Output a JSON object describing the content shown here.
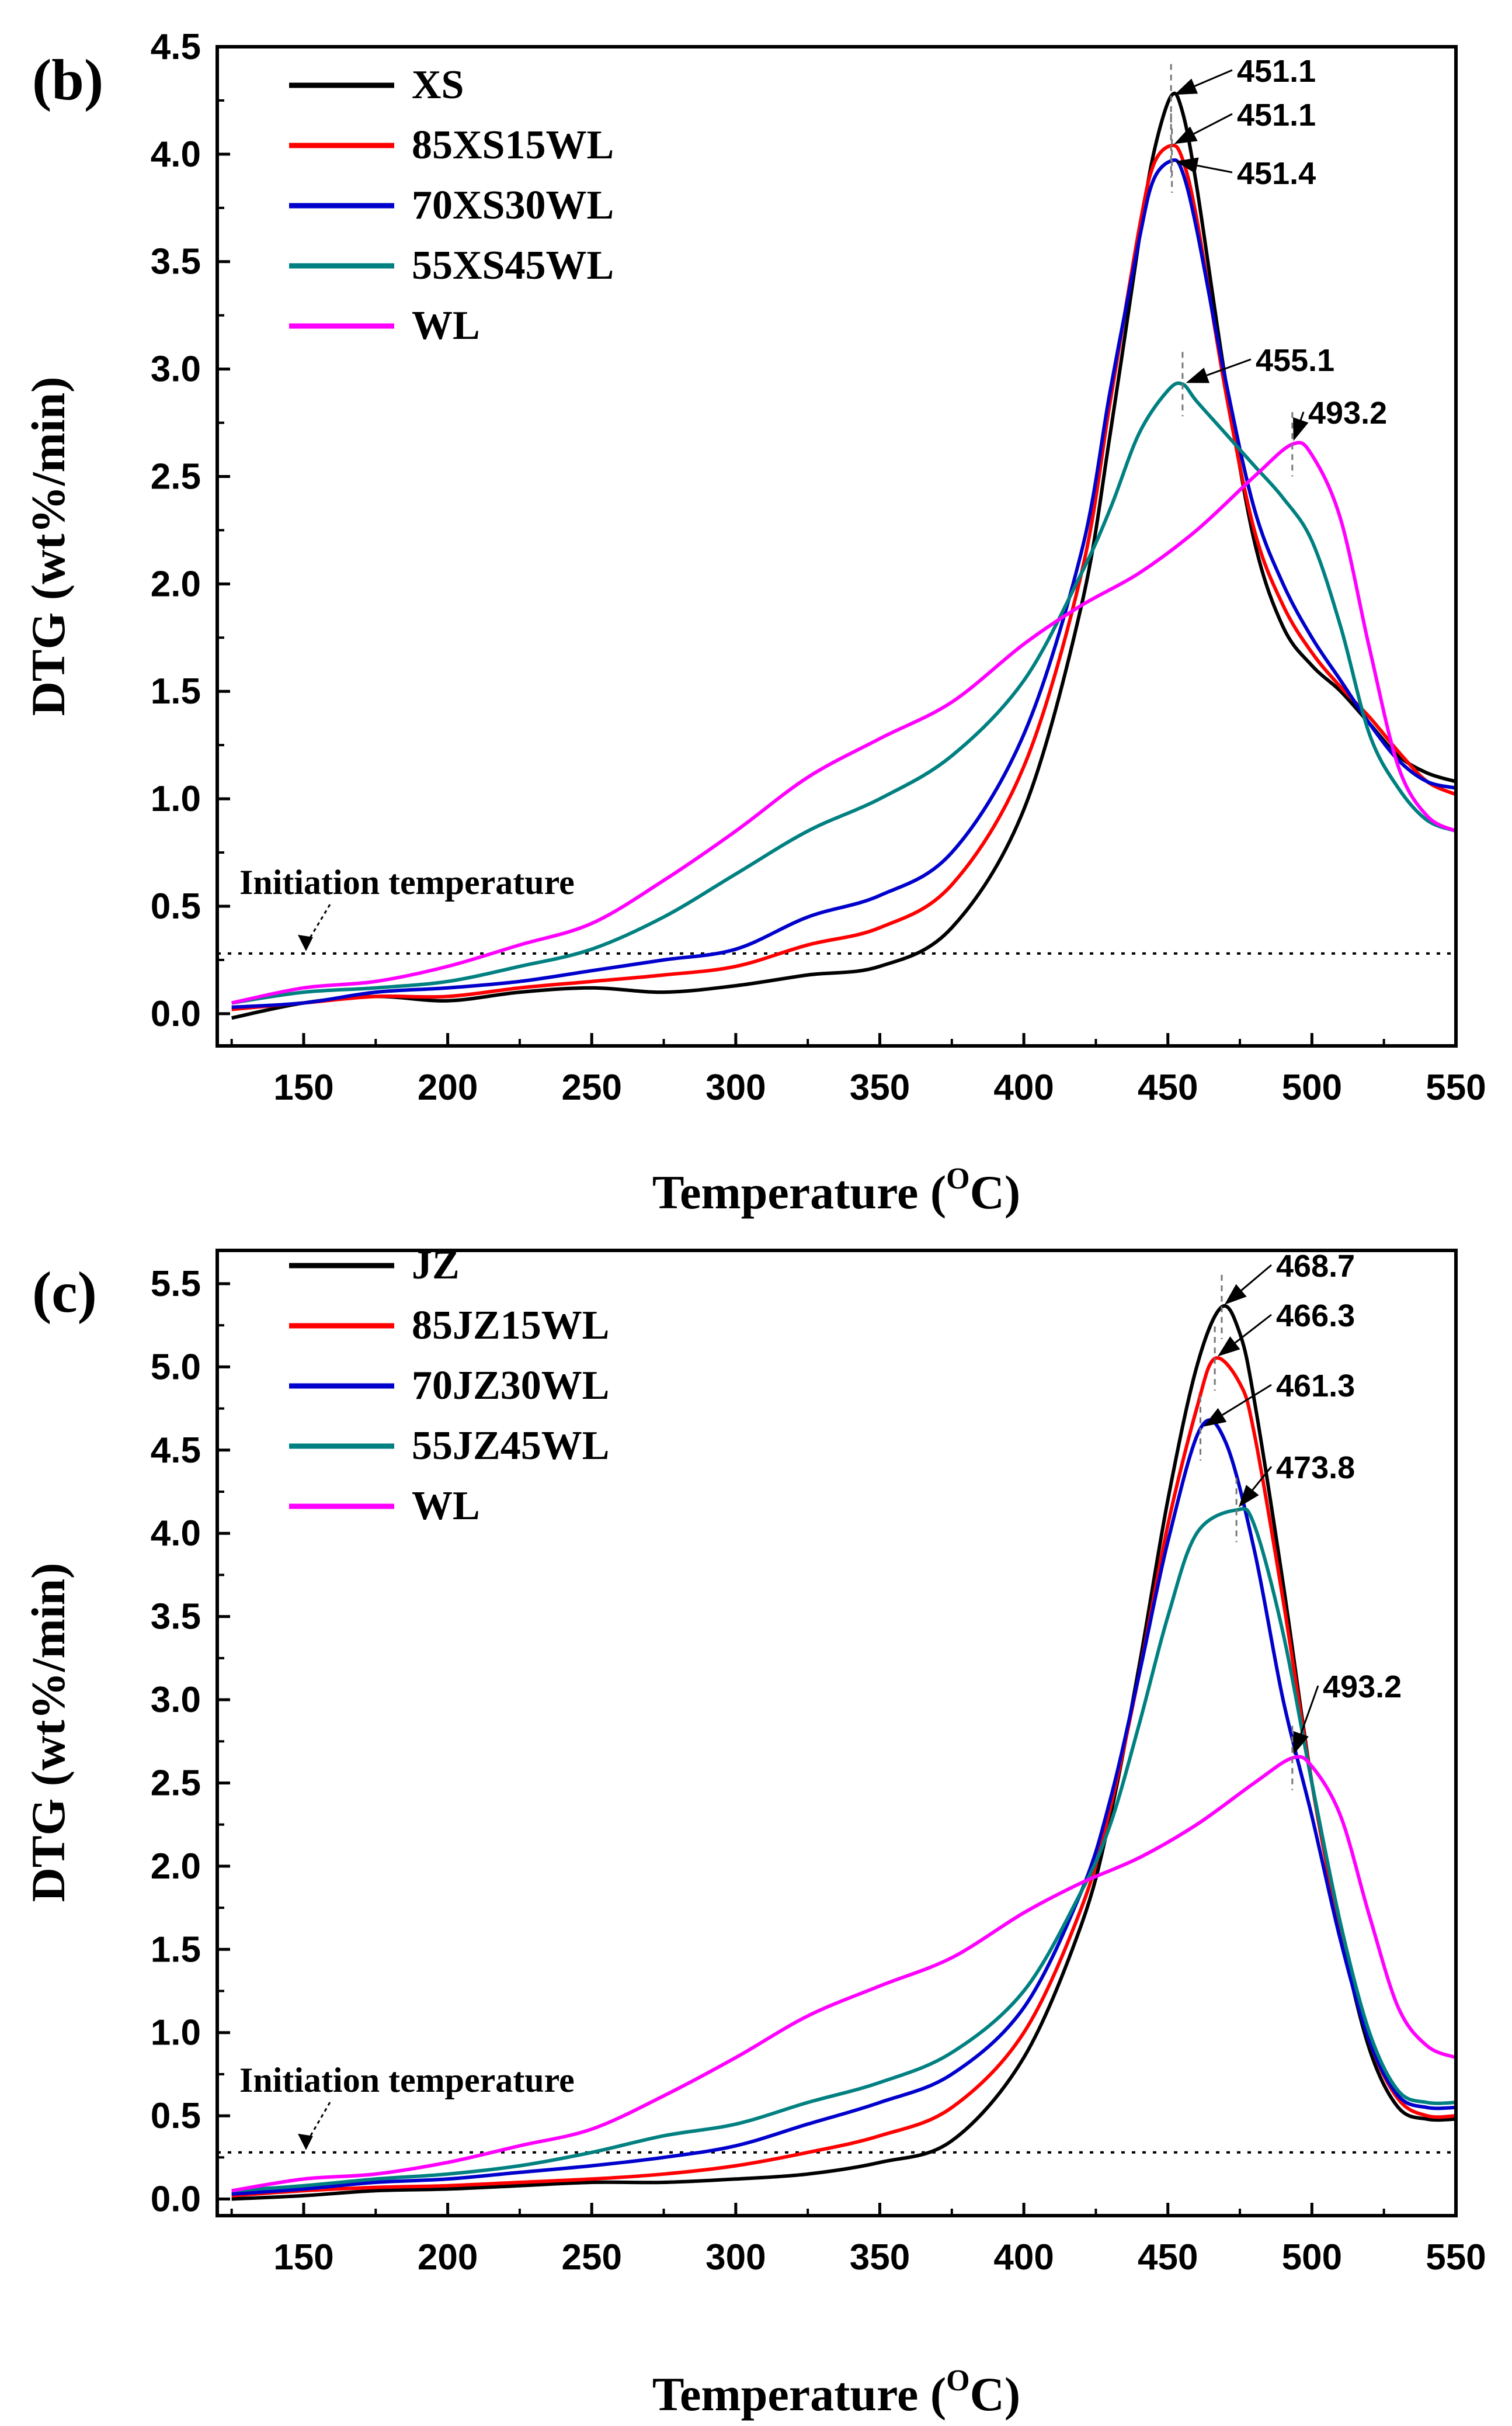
{
  "chart_data": [
    {
      "type": "line",
      "panel_label": "(b)",
      "xlabel": "Temperature (",
      "xlabel_sup": "O",
      "xlabel_unit": "C)",
      "ylabel": "DTG (wt%/min)",
      "xlim": [
        120,
        550
      ],
      "ylim": [
        -0.15,
        4.5
      ],
      "xticks": [
        150,
        200,
        250,
        300,
        350,
        400,
        450,
        500,
        550
      ],
      "yticks": [
        "0.0",
        "0.5",
        "1.0",
        "1.5",
        "2.0",
        "2.5",
        "3.0",
        "3.5",
        "4.0",
        "4.5"
      ],
      "initiation_label": "Initiation temperature",
      "initiation_value": 0.28,
      "initiation_arrow_x": 150,
      "series": [
        {
          "name": "XS",
          "color": "#000000",
          "x": [
            125,
            150,
            175,
            200,
            225,
            250,
            275,
            300,
            325,
            350,
            375,
            400,
            420,
            430,
            440,
            445,
            451.1,
            455,
            460,
            470,
            480,
            490,
            500,
            510,
            520,
            530,
            540,
            550
          ],
          "y": [
            -0.02,
            0.05,
            0.08,
            0.06,
            0.1,
            0.12,
            0.1,
            0.13,
            0.18,
            0.22,
            0.4,
            0.95,
            1.9,
            2.7,
            3.6,
            4.0,
            4.27,
            4.2,
            3.85,
            2.95,
            2.2,
            1.8,
            1.62,
            1.5,
            1.35,
            1.2,
            1.12,
            1.08
          ]
        },
        {
          "name": "85XS15WL",
          "color": "#ff0000",
          "x": [
            125,
            150,
            175,
            200,
            225,
            250,
            275,
            300,
            325,
            350,
            375,
            400,
            420,
            430,
            440,
            445,
            451.1,
            455,
            460,
            470,
            480,
            490,
            500,
            510,
            520,
            530,
            540,
            550
          ],
          "y": [
            0.02,
            0.05,
            0.08,
            0.08,
            0.12,
            0.15,
            0.18,
            0.22,
            0.32,
            0.4,
            0.6,
            1.15,
            2.05,
            2.85,
            3.65,
            3.95,
            4.04,
            3.98,
            3.7,
            2.9,
            2.25,
            1.9,
            1.68,
            1.52,
            1.38,
            1.22,
            1.08,
            1.02
          ]
        },
        {
          "name": "70XS30WL",
          "color": "#0000cc",
          "x": [
            125,
            150,
            175,
            200,
            225,
            250,
            275,
            300,
            325,
            350,
            375,
            400,
            420,
            430,
            440,
            445,
            451.4,
            455,
            460,
            470,
            480,
            490,
            500,
            510,
            520,
            530,
            540,
            550
          ],
          "y": [
            0.03,
            0.05,
            0.1,
            0.12,
            0.15,
            0.2,
            0.25,
            0.3,
            0.45,
            0.55,
            0.75,
            1.3,
            2.15,
            2.9,
            3.6,
            3.88,
            3.97,
            3.92,
            3.65,
            2.95,
            2.35,
            2.0,
            1.75,
            1.55,
            1.35,
            1.18,
            1.08,
            1.05
          ]
        },
        {
          "name": "55XS45WL",
          "color": "#008080",
          "x": [
            125,
            150,
            175,
            200,
            225,
            250,
            275,
            300,
            325,
            350,
            375,
            400,
            420,
            430,
            440,
            450,
            455.1,
            460,
            470,
            480,
            490,
            500,
            510,
            520,
            530,
            540,
            550
          ],
          "y": [
            0.05,
            0.1,
            0.12,
            0.15,
            0.22,
            0.3,
            0.45,
            0.65,
            0.85,
            1.0,
            1.2,
            1.55,
            2.05,
            2.35,
            2.7,
            2.9,
            2.93,
            2.85,
            2.7,
            2.55,
            2.4,
            2.2,
            1.8,
            1.3,
            1.05,
            0.9,
            0.85
          ]
        },
        {
          "name": "WL",
          "color": "#ff00ff",
          "x": [
            125,
            150,
            175,
            200,
            225,
            250,
            275,
            300,
            325,
            350,
            375,
            400,
            420,
            440,
            460,
            480,
            493.2,
            500,
            510,
            520,
            530,
            540,
            550
          ],
          "y": [
            0.05,
            0.12,
            0.15,
            0.22,
            0.32,
            0.42,
            0.62,
            0.85,
            1.1,
            1.28,
            1.45,
            1.72,
            1.9,
            2.05,
            2.25,
            2.5,
            2.65,
            2.6,
            2.3,
            1.7,
            1.15,
            0.92,
            0.85
          ]
        }
      ],
      "peaks": [
        {
          "label": "451.1",
          "x": 451.1,
          "y": 4.27,
          "color": "#000000"
        },
        {
          "label": "451.1",
          "x": 451.1,
          "y": 4.04,
          "color": "#ff0000"
        },
        {
          "label": "451.4",
          "x": 451.4,
          "y": 3.97,
          "color": "#0000cc"
        },
        {
          "label": "455.1",
          "x": 455.1,
          "y": 2.93,
          "color": "#008080"
        },
        {
          "label": "493.2",
          "x": 493.2,
          "y": 2.65,
          "color": "#ff00ff"
        }
      ]
    },
    {
      "type": "line",
      "panel_label": "(c)",
      "xlabel": "Temperature (",
      "xlabel_sup": "O",
      "xlabel_unit": "C)",
      "ylabel": "DTG (wt%/min)",
      "xlim": [
        120,
        550
      ],
      "ylim": [
        -0.1,
        5.7
      ],
      "xticks": [
        150,
        200,
        250,
        300,
        350,
        400,
        450,
        500,
        550
      ],
      "yticks": [
        "0.0",
        "0.5",
        "1.0",
        "1.5",
        "2.0",
        "2.5",
        "3.0",
        "3.5",
        "4.0",
        "4.5",
        "5.0",
        "5.5"
      ],
      "initiation_label": "Initiation temperature",
      "initiation_value": 0.28,
      "initiation_arrow_x": 150,
      "series": [
        {
          "name": "JZ",
          "color": "#000000",
          "x": [
            125,
            150,
            175,
            200,
            225,
            250,
            275,
            300,
            325,
            350,
            375,
            400,
            420,
            430,
            440,
            450,
            460,
            468.7,
            475,
            480,
            490,
            500,
            510,
            520,
            530,
            540,
            550
          ],
          "y": [
            0.0,
            0.02,
            0.05,
            0.06,
            0.08,
            0.1,
            0.1,
            0.12,
            0.15,
            0.22,
            0.35,
            0.85,
            1.65,
            2.3,
            3.2,
            4.2,
            5.0,
            5.36,
            5.2,
            4.8,
            3.7,
            2.5,
            1.6,
            0.9,
            0.55,
            0.48,
            0.48
          ]
        },
        {
          "name": "85JZ15WL",
          "color": "#ff0000",
          "x": [
            125,
            150,
            175,
            200,
            225,
            250,
            275,
            300,
            325,
            350,
            375,
            400,
            420,
            430,
            440,
            450,
            460,
            466.3,
            475,
            480,
            490,
            500,
            510,
            520,
            530,
            540,
            550
          ],
          "y": [
            0.02,
            0.05,
            0.07,
            0.08,
            0.1,
            0.12,
            0.15,
            0.2,
            0.28,
            0.38,
            0.55,
            1.0,
            1.75,
            2.35,
            3.15,
            4.05,
            4.75,
            5.05,
            4.9,
            4.6,
            3.6,
            2.5,
            1.6,
            0.95,
            0.6,
            0.5,
            0.5
          ]
        },
        {
          "name": "70JZ30WL",
          "color": "#0000cc",
          "x": [
            125,
            150,
            175,
            200,
            225,
            250,
            275,
            300,
            325,
            350,
            375,
            400,
            420,
            430,
            440,
            450,
            461.3,
            470,
            480,
            490,
            500,
            510,
            520,
            530,
            540,
            550
          ],
          "y": [
            0.03,
            0.06,
            0.1,
            0.12,
            0.16,
            0.2,
            0.25,
            0.32,
            0.45,
            0.58,
            0.75,
            1.15,
            1.85,
            2.4,
            3.15,
            3.95,
            4.63,
            4.55,
            3.9,
            3.0,
            2.3,
            1.55,
            0.95,
            0.62,
            0.55,
            0.55
          ]
        },
        {
          "name": "55JZ45WL",
          "color": "#008080",
          "x": [
            125,
            150,
            175,
            200,
            225,
            250,
            275,
            300,
            325,
            350,
            375,
            400,
            420,
            430,
            440,
            450,
            460,
            473.8,
            480,
            490,
            500,
            510,
            520,
            530,
            540,
            550
          ],
          "y": [
            0.05,
            0.08,
            0.12,
            0.15,
            0.2,
            0.28,
            0.38,
            0.45,
            0.58,
            0.7,
            0.88,
            1.25,
            1.85,
            2.25,
            2.85,
            3.5,
            4.0,
            4.14,
            4.05,
            3.4,
            2.5,
            1.65,
            1.0,
            0.65,
            0.58,
            0.58
          ]
        },
        {
          "name": "WL",
          "color": "#ff00ff",
          "x": [
            125,
            150,
            175,
            200,
            225,
            250,
            275,
            300,
            325,
            350,
            375,
            400,
            420,
            440,
            460,
            480,
            493.2,
            500,
            510,
            520,
            530,
            540,
            550
          ],
          "y": [
            0.05,
            0.12,
            0.15,
            0.22,
            0.32,
            0.42,
            0.62,
            0.85,
            1.1,
            1.28,
            1.45,
            1.72,
            1.9,
            2.05,
            2.25,
            2.5,
            2.65,
            2.6,
            2.3,
            1.7,
            1.15,
            0.92,
            0.85
          ]
        }
      ],
      "peaks": [
        {
          "label": "468.7",
          "x": 468.7,
          "y": 5.36,
          "color": "#000000"
        },
        {
          "label": "466.3",
          "x": 466.3,
          "y": 5.05,
          "color": "#ff0000"
        },
        {
          "label": "461.3",
          "x": 461.3,
          "y": 4.63,
          "color": "#0000cc"
        },
        {
          "label": "473.8",
          "x": 473.8,
          "y": 4.14,
          "color": "#008080"
        },
        {
          "label": "493.2",
          "x": 493.2,
          "y": 2.65,
          "color": "#ff00ff"
        }
      ]
    }
  ]
}
